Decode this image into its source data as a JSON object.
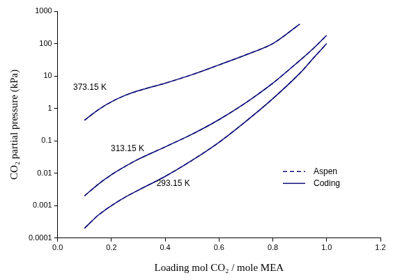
{
  "chart_data": {
    "type": "line",
    "x_label": "Loading mol CO₂ / mole MEA",
    "y_label": "CO₂ partial pressure (kPa)",
    "log": "y",
    "grid": false,
    "legend": "lower right",
    "xlim": [
      0,
      1.2
    ],
    "xticks": [
      {
        "value": 0,
        "label": "0.0"
      },
      0.2,
      0.4,
      0.6,
      0.8,
      {
        "value": 1,
        "label": "1.0"
      },
      1.2
    ],
    "ylim": [
      0.0001,
      1000
    ],
    "yticks": [
      0.0001,
      0.001,
      0.01,
      0.1,
      1,
      10,
      100,
      1000
    ],
    "series": [
      {
        "name": "Coding",
        "color": "#10107a",
        "line_style": "solid",
        "curves": [
          {
            "x": [
              0.1,
              0.15,
              0.2,
              0.25,
              0.3,
              0.4,
              0.5,
              0.6,
              0.7,
              0.8,
              0.9
            ],
            "values": [
              0.43,
              0.9,
              1.6,
              2.5,
              3.5,
              6,
              11,
              22,
              45,
              100,
              400
            ]
          },
          {
            "x": [
              0.1,
              0.15,
              0.2,
              0.25,
              0.3,
              0.4,
              0.5,
              0.6,
              0.7,
              0.8,
              0.9,
              0.95,
              1.0
            ],
            "values": [
              0.002,
              0.0045,
              0.009,
              0.016,
              0.027,
              0.065,
              0.16,
              0.45,
              1.5,
              6,
              30,
              70,
              180
            ]
          },
          {
            "x": [
              0.1,
              0.15,
              0.2,
              0.25,
              0.3,
              0.4,
              0.5,
              0.6,
              0.7,
              0.8,
              0.9,
              0.95,
              1.0
            ],
            "values": [
              0.0002,
              0.0005,
              0.001,
              0.0018,
              0.003,
              0.008,
              0.025,
              0.09,
              0.4,
              2,
              12,
              35,
              100
            ]
          }
        ]
      },
      {
        "name": "Aspen",
        "color": "#10107a",
        "line_style": "dashed",
        "curves": [
          {
            "x": [
              0.1,
              0.15,
              0.2,
              0.25,
              0.3,
              0.4,
              0.5,
              0.6,
              0.7,
              0.8,
              0.9
            ],
            "values": [
              0.43,
              0.9,
              1.6,
              2.5,
              3.5,
              6,
              11,
              22,
              45,
              100,
              400
            ]
          },
          {
            "x": [
              0.1,
              0.15,
              0.2,
              0.25,
              0.3,
              0.4,
              0.5,
              0.6,
              0.7,
              0.8,
              0.9,
              0.95,
              1.0
            ],
            "values": [
              0.002,
              0.0045,
              0.009,
              0.016,
              0.027,
              0.065,
              0.16,
              0.45,
              1.5,
              6,
              30,
              70,
              180
            ]
          },
          {
            "x": [
              0.1,
              0.15,
              0.2,
              0.25,
              0.3,
              0.4,
              0.5,
              0.6,
              0.7,
              0.8,
              0.9,
              0.95,
              1.0
            ],
            "values": [
              0.0002,
              0.0005,
              0.001,
              0.0018,
              0.003,
              0.008,
              0.025,
              0.09,
              0.4,
              2,
              12,
              35,
              100
            ]
          }
        ]
      }
    ],
    "annotations": [
      {
        "text": "373.15 K",
        "x": 0.12,
        "y": 4.5
      },
      {
        "text": "313.15 K",
        "x": 0.26,
        "y": 0.057
      },
      {
        "text": "293.15 K",
        "x": 0.43,
        "y": 0.0047
      }
    ]
  }
}
